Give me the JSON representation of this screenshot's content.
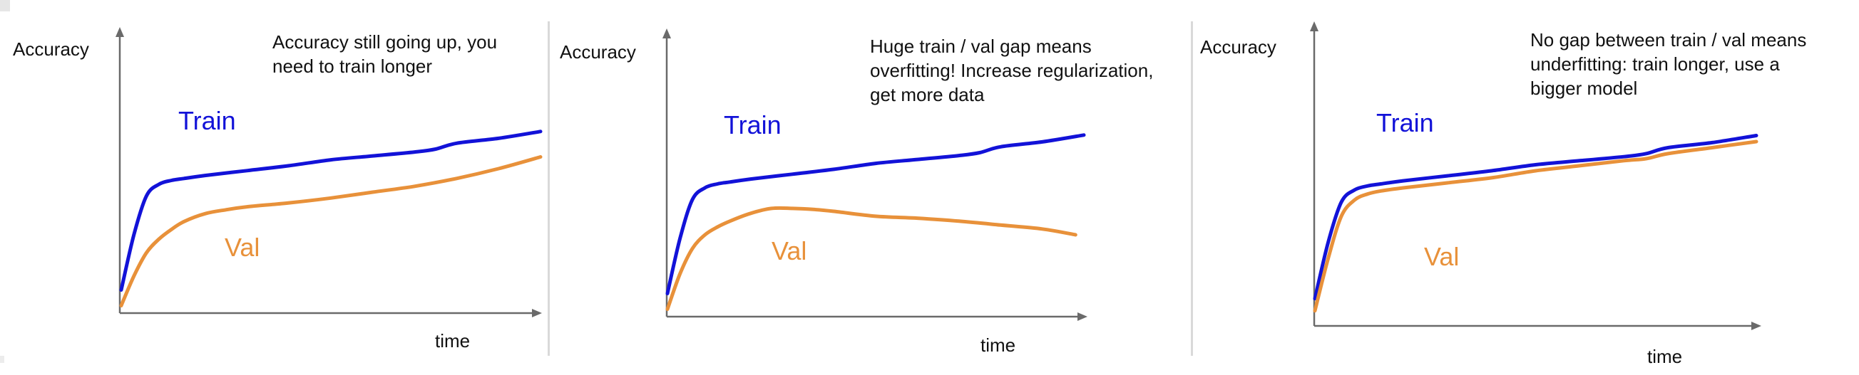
{
  "colors": {
    "train": "#1212d8",
    "val": "#e8913a",
    "axis": "#6a6a6a",
    "text": "#111111"
  },
  "chart_data": [
    {
      "type": "line",
      "ylabel": "Accuracy",
      "xlabel": "time",
      "annotation": [
        "Accuracy still going up, you",
        "need to train longer"
      ],
      "series": [
        {
          "name": "Train",
          "x": [
            0,
            3,
            6,
            9,
            12,
            15,
            20,
            30,
            40,
            50,
            60,
            70,
            75,
            80,
            90,
            100
          ],
          "y": [
            0.1,
            0.38,
            0.58,
            0.64,
            0.66,
            0.67,
            0.685,
            0.71,
            0.735,
            0.765,
            0.785,
            0.805,
            0.82,
            0.85,
            0.875,
            0.91
          ]
        },
        {
          "name": "Val",
          "x": [
            0,
            3,
            6,
            9,
            12,
            15,
            20,
            25,
            30,
            40,
            50,
            60,
            70,
            80,
            90,
            100
          ],
          "y": [
            0.02,
            0.17,
            0.29,
            0.36,
            0.41,
            0.45,
            0.49,
            0.51,
            0.525,
            0.545,
            0.57,
            0.6,
            0.63,
            0.67,
            0.72,
            0.78
          ]
        }
      ]
    },
    {
      "type": "line",
      "ylabel": "Accuracy",
      "xlabel": "time",
      "annotation": [
        "Huge train / val gap means",
        "overfitting! Increase regularization,",
        "get more data"
      ],
      "series": [
        {
          "name": "Train",
          "x": [
            0,
            3,
            6,
            9,
            12,
            15,
            20,
            30,
            40,
            50,
            60,
            70,
            75,
            80,
            90,
            100
          ],
          "y": [
            0.1,
            0.38,
            0.58,
            0.64,
            0.66,
            0.67,
            0.685,
            0.71,
            0.735,
            0.765,
            0.785,
            0.805,
            0.82,
            0.85,
            0.875,
            0.91
          ]
        },
        {
          "name": "Val",
          "x": [
            0,
            3,
            6,
            9,
            12,
            15,
            20,
            25,
            30,
            35,
            40,
            50,
            60,
            70,
            80,
            90,
            98
          ],
          "y": [
            0.02,
            0.2,
            0.33,
            0.4,
            0.44,
            0.47,
            0.51,
            0.535,
            0.535,
            0.53,
            0.52,
            0.495,
            0.485,
            0.47,
            0.45,
            0.43,
            0.4
          ]
        }
      ]
    },
    {
      "type": "line",
      "ylabel": "Accuracy",
      "xlabel": "time",
      "annotation": [
        "No gap between train / val means",
        "underfitting: train longer, use a",
        "bigger model"
      ],
      "series": [
        {
          "name": "Train",
          "x": [
            0,
            3,
            6,
            9,
            12,
            15,
            20,
            30,
            40,
            50,
            60,
            70,
            75,
            80,
            90,
            100
          ],
          "y": [
            0.1,
            0.38,
            0.58,
            0.64,
            0.66,
            0.67,
            0.685,
            0.71,
            0.735,
            0.765,
            0.785,
            0.805,
            0.82,
            0.85,
            0.875,
            0.91
          ]
        },
        {
          "name": "Val",
          "x": [
            0,
            3,
            6,
            9,
            12,
            15,
            20,
            30,
            40,
            50,
            60,
            70,
            75,
            80,
            90,
            100
          ],
          "y": [
            0.04,
            0.3,
            0.51,
            0.59,
            0.62,
            0.635,
            0.65,
            0.675,
            0.7,
            0.735,
            0.76,
            0.785,
            0.795,
            0.82,
            0.85,
            0.88
          ]
        }
      ]
    }
  ]
}
